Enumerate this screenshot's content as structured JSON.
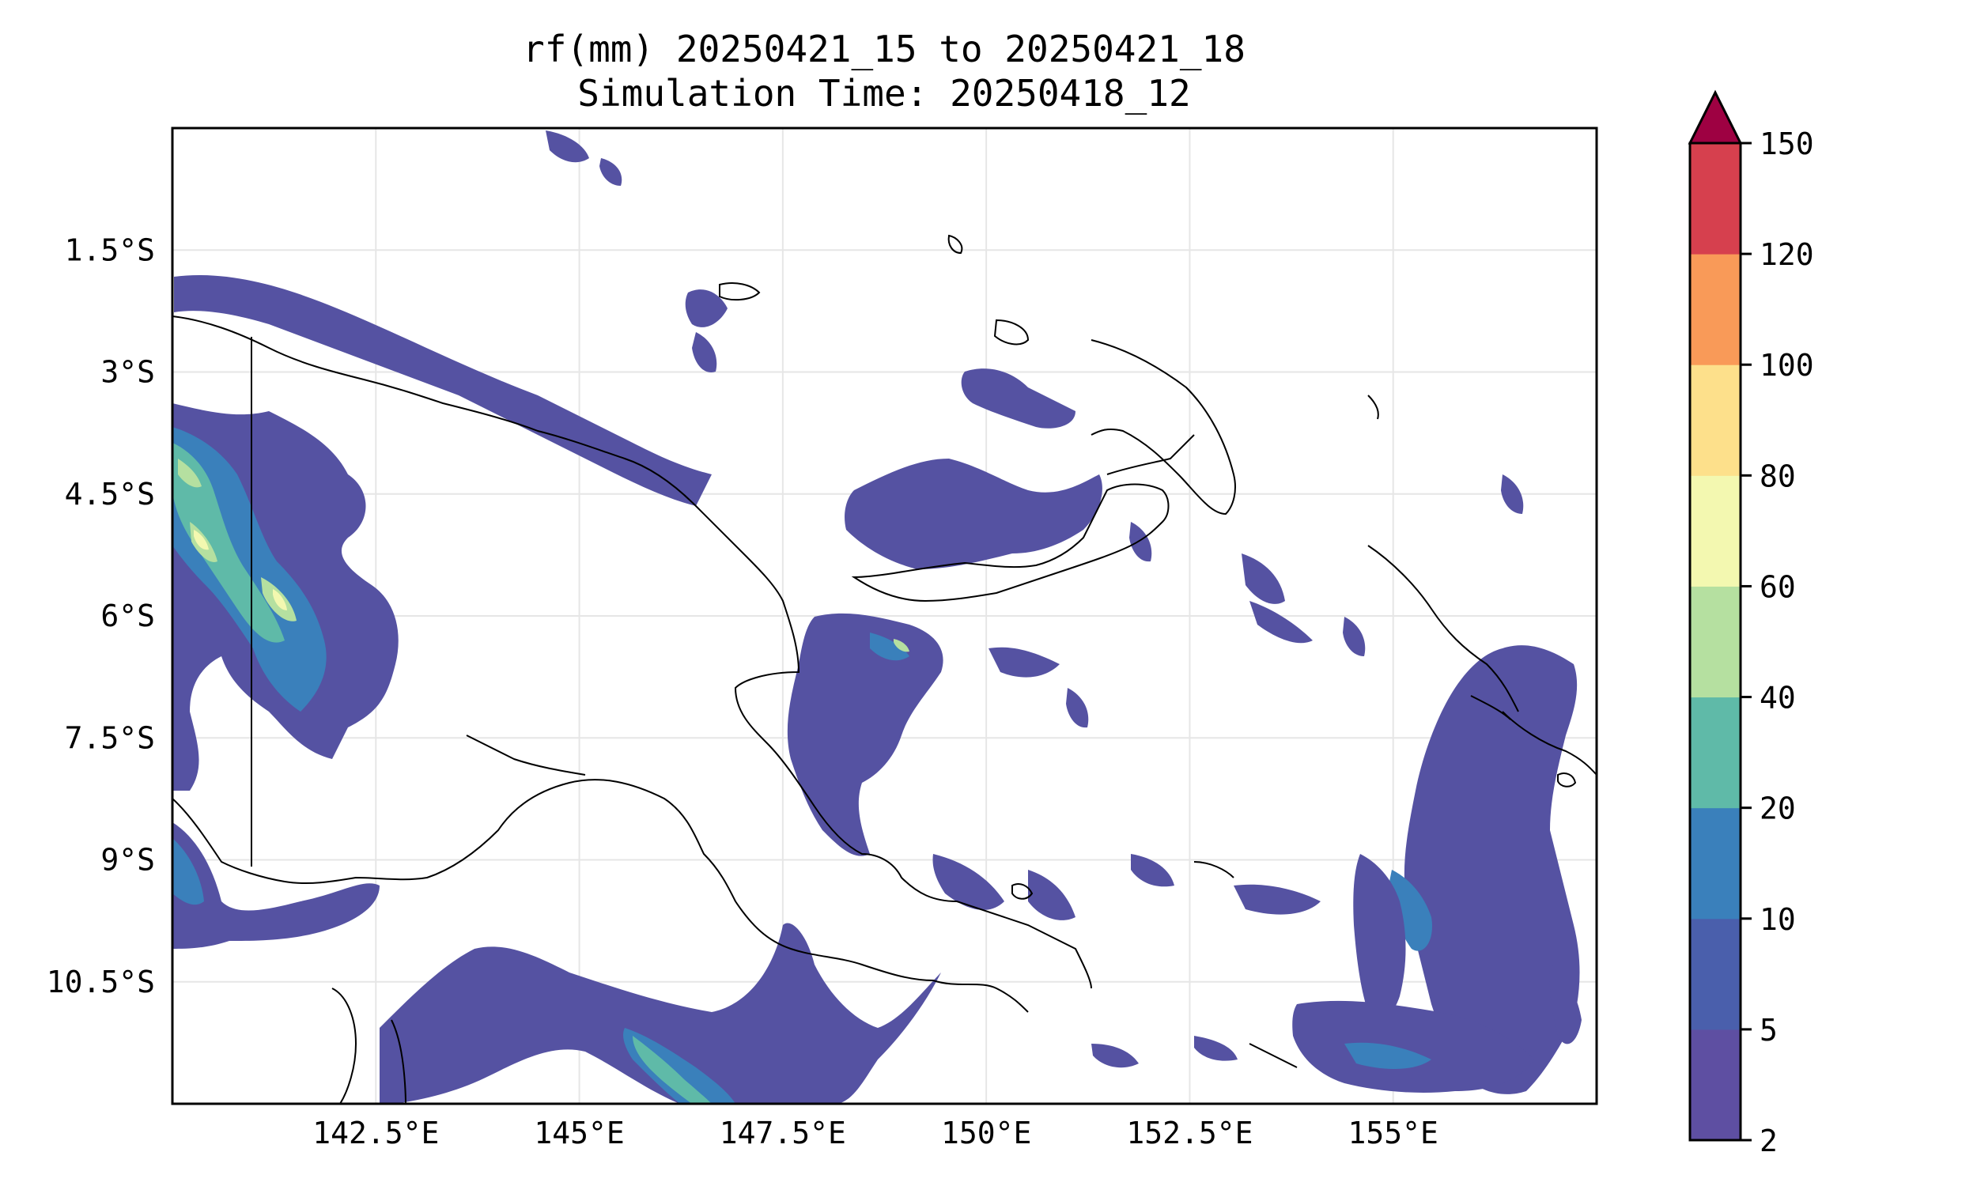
{
  "title_line1": "rf(mm) 20250421_15 to 20250421_18",
  "title_line2": "Simulation Time: 20250418_12",
  "map": {
    "lon_range": [
      140.0,
      157.5
    ],
    "lat_range": [
      -12.0,
      0.0
    ],
    "lat_ticks": [
      {
        "value": -1.5,
        "label": "1.5°S"
      },
      {
        "value": -3.0,
        "label": "3°S"
      },
      {
        "value": -4.5,
        "label": "4.5°S"
      },
      {
        "value": -6.0,
        "label": "6°S"
      },
      {
        "value": -7.5,
        "label": "7.5°S"
      },
      {
        "value": -9.0,
        "label": "9°S"
      },
      {
        "value": -10.5,
        "label": "10.5°S"
      }
    ],
    "lon_ticks": [
      {
        "value": 142.5,
        "label": "142.5°E"
      },
      {
        "value": 145.0,
        "label": "145°E"
      },
      {
        "value": 147.5,
        "label": "147.5°E"
      },
      {
        "value": 150.0,
        "label": "150°E"
      },
      {
        "value": 152.5,
        "label": "152.5°E"
      },
      {
        "value": 155.0,
        "label": "155°E"
      }
    ],
    "gridlines": true
  },
  "colorbar": {
    "levels": [
      {
        "label": "2",
        "color": "#5e4fa2"
      },
      {
        "label": "5",
        "color": "#4a5fac"
      },
      {
        "label": "10",
        "color": "#3a80bb"
      },
      {
        "label": "20",
        "color": "#5fbaa8"
      },
      {
        "label": "40",
        "color": "#b5e0a0"
      },
      {
        "label": "60",
        "color": "#f3f8b0"
      },
      {
        "label": "80",
        "color": "#fde08b"
      },
      {
        "label": "100",
        "color": "#f99a58"
      },
      {
        "label": "120",
        "color": "#d6404e"
      },
      {
        "label": "150",
        "color": "#9e0142"
      }
    ],
    "extend": "max"
  }
}
